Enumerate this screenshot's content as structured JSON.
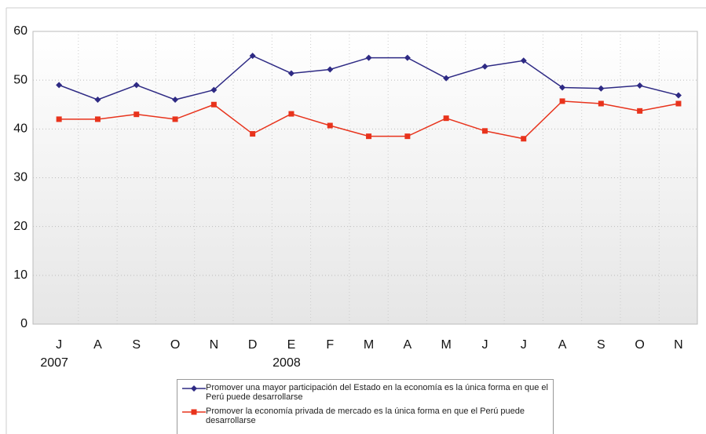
{
  "chart_data": {
    "type": "line",
    "categories": [
      "J",
      "A",
      "S",
      "O",
      "N",
      "D",
      "E",
      "F",
      "M",
      "A",
      "M",
      "J",
      "J",
      "A",
      "S",
      "O",
      "N"
    ],
    "year_labels": [
      "2007",
      null,
      null,
      null,
      null,
      null,
      "2008",
      null,
      null,
      null,
      null,
      null,
      null,
      null,
      null,
      null,
      null
    ],
    "series": [
      {
        "name": "Promover una mayor participación del Estado en la economía es la única forma en que el Perú puede desarrollarse",
        "color": "#2e2a84",
        "marker": "diamond",
        "values": [
          49,
          46,
          49,
          46,
          48,
          55,
          51.4,
          52.2,
          54.6,
          54.6,
          50.4,
          52.8,
          54,
          48.5,
          48.3,
          48.9,
          46.9
        ]
      },
      {
        "name": "Promover la economía privada de mercado es la única forma en que el Perú puede desarrollarse",
        "color": "#e8331c",
        "marker": "square",
        "values": [
          42,
          42,
          43,
          42,
          45,
          39,
          43.1,
          40.7,
          38.5,
          38.5,
          42.2,
          39.6,
          38,
          45.7,
          45.2,
          43.7,
          45.2
        ]
      }
    ],
    "ylim": [
      0,
      60
    ],
    "yticks": [
      0,
      10,
      20,
      30,
      40,
      50,
      60
    ],
    "grid": true
  }
}
